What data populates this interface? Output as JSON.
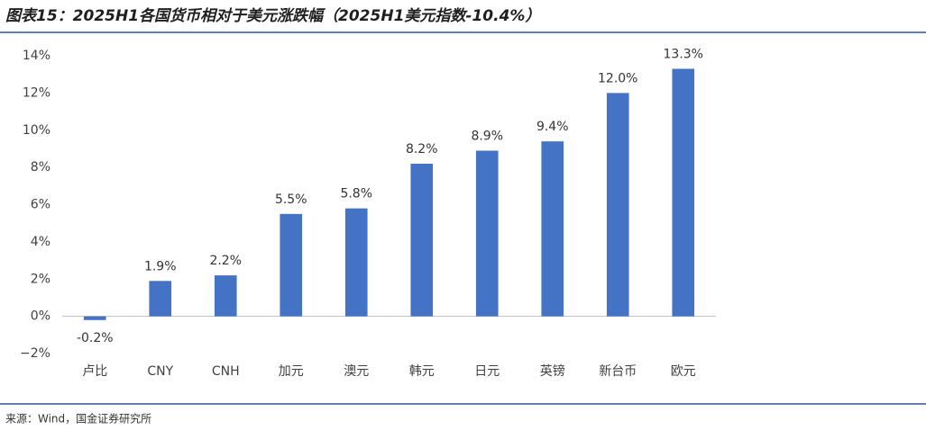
{
  "chart_data": {
    "type": "bar",
    "title": "图表15：2025H1各国货币相对于美元涨跌幅（2025H1美元指数-10.4%）",
    "source": "来源：Wind，国金证券研究所",
    "categories": [
      "卢比",
      "CNY",
      "CNH",
      "加元",
      "澳元",
      "韩元",
      "日元",
      "英镑",
      "新台币",
      "欧元"
    ],
    "values": [
      -0.2,
      1.9,
      2.2,
      5.5,
      5.8,
      8.2,
      8.9,
      9.4,
      12.0,
      13.3
    ],
    "value_labels": [
      "-0.2%",
      "1.9%",
      "2.2%",
      "5.5%",
      "5.8%",
      "8.2%",
      "8.9%",
      "9.4%",
      "12.0%",
      "13.3%"
    ],
    "color": "#4472c4",
    "ylim": [
      -2,
      14
    ],
    "yticks": [
      {
        "value": -2,
        "label": "−2%"
      },
      {
        "value": 0,
        "label": "0%"
      },
      {
        "value": 2,
        "label": "2%"
      },
      {
        "value": 4,
        "label": "4%"
      },
      {
        "value": 6,
        "label": "6%"
      },
      {
        "value": 8,
        "label": "8%"
      },
      {
        "value": 10,
        "label": "10%"
      },
      {
        "value": 12,
        "label": "12%"
      },
      {
        "value": 14,
        "label": "14%"
      }
    ],
    "grid": false
  }
}
